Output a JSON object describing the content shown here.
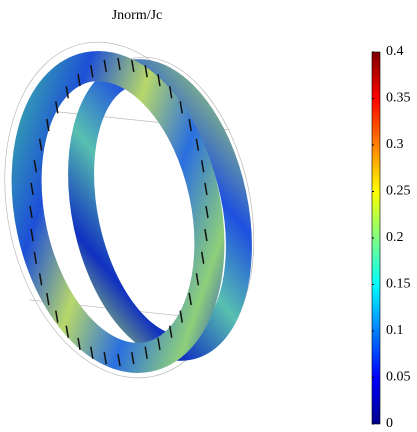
{
  "chart_data": {
    "type": "surface",
    "title": "Jnorm/Jc",
    "colormap": "jet",
    "clim": [
      0,
      0.4
    ],
    "cticks": [
      0,
      0.05,
      0.1,
      0.15,
      0.2,
      0.25,
      0.3,
      0.35,
      0.4
    ]
  }
}
